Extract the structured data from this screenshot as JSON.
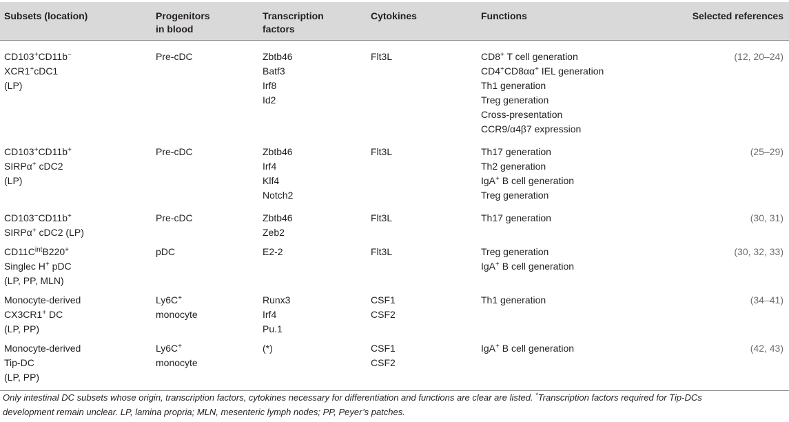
{
  "headers": {
    "subsets": "Subsets (location)",
    "progenitors_1": "Progenitors",
    "progenitors_2": "in blood",
    "tf_1": "Transcription",
    "tf_2": "factors",
    "cytokines": "Cytokines",
    "functions": "Functions",
    "references": "Selected references"
  },
  "rows": [
    {
      "subset": {
        "a": "CD103",
        "a_sup": "+",
        "b": "CD11b",
        "b_sup": "−",
        "c": "XCR1",
        "c_sup": "+",
        "d": "cDC1",
        "e": "(LP)"
      },
      "progenitor": "Pre-cDC",
      "tf": [
        "Zbtb46",
        "Batf3",
        "Irf8",
        "Id2"
      ],
      "cytokines": [
        "Flt3L"
      ],
      "functions": {
        "f1a": "CD8",
        "f1_sup": "+",
        "f1b": " T cell generation",
        "f2a": "CD4",
        "f2_sup1": "+",
        "f2b": "CD8αα",
        "f2_sup2": "+",
        "f2c": " IEL generation",
        "f3": "Th1 generation",
        "f4": "Treg generation",
        "f5": "Cross-presentation",
        "f6": "CCR9/α4β7 expression"
      },
      "ref": "(12, 20–24)"
    },
    {
      "subset": {
        "a": "CD103",
        "a_sup": "+",
        "b": "CD11b",
        "b_sup": "+",
        "c": "SIRPα",
        "c_sup": "+",
        "d": " cDC2",
        "e": "(LP)"
      },
      "progenitor": "Pre-cDC",
      "tf": [
        "Zbtb46",
        "Irf4",
        "Klf4",
        "Notch2"
      ],
      "cytokines": [
        "Flt3L"
      ],
      "functions": {
        "f1": "Th17 generation",
        "f2": "Th2 generation",
        "f3a": "IgA",
        "f3_sup": "+",
        "f3b": " B cell generation",
        "f4": "Treg generation"
      },
      "ref": "(25–29)"
    },
    {
      "subset": {
        "a": "CD103",
        "a_sup": "−",
        "b": "CD11b",
        "b_sup": "+",
        "c": "SIRPα",
        "c_sup": "+",
        "d": " cDC2 (LP)"
      },
      "progenitor": "Pre-cDC",
      "tf": [
        "Zbtb46",
        "Zeb2"
      ],
      "cytokines": [
        "Flt3L"
      ],
      "functions": {
        "f1": "Th17 generation"
      },
      "ref": "(30, 31)"
    },
    {
      "subset": {
        "a": "CD11C",
        "a_sup": "int",
        "b": "B220",
        "b_sup": "+",
        "c": "Singlec H",
        "c_sup": "+",
        "d": " pDC",
        "e": "(LP, PP, MLN)"
      },
      "progenitor": "pDC",
      "tf": [
        "E2-2"
      ],
      "cytokines": [
        "Flt3L"
      ],
      "functions": {
        "f1": "Treg generation",
        "f2a": "IgA",
        "f2_sup": "+",
        "f2b": " B cell generation"
      },
      "ref": "(30, 32, 33)"
    },
    {
      "subset": {
        "a": "Monocyte-derived",
        "b": "CX3CR1",
        "b_sup": "+",
        "c": " DC",
        "d": "(LP, PP)"
      },
      "progenitor": {
        "a": "Ly6C",
        "a_sup": "+",
        "b": "monocyte"
      },
      "tf": [
        "Runx3",
        "Irf4",
        "Pu.1"
      ],
      "cytokines": [
        "CSF1",
        "CSF2"
      ],
      "functions": {
        "f1": "Th1 generation"
      },
      "ref": "(34–41)"
    },
    {
      "subset": {
        "a": "Monocyte-derived",
        "b": "Tip-DC",
        "c": "(LP, PP)"
      },
      "progenitor": {
        "a": "Ly6C",
        "a_sup": "+",
        "b": "monocyte"
      },
      "tf": [
        "(*)"
      ],
      "cytokines": [
        "CSF1",
        "CSF2"
      ],
      "functions": {
        "f1a": "IgA",
        "f1_sup": "+",
        "f1b": " B cell generation"
      },
      "ref": "(42, 43)"
    }
  ],
  "footnote": {
    "line1a": "Only intestinal DC subsets whose origin, transcription factors, cytokines necessary for differentiation and functions are clear are listed. ",
    "star": "*",
    "line1b": "Transcription factors required for Tip-DCs",
    "line2": "development remain unclear. LP, lamina propria; MLN, mesenteric lymph nodes; PP, Peyer’s patches."
  }
}
